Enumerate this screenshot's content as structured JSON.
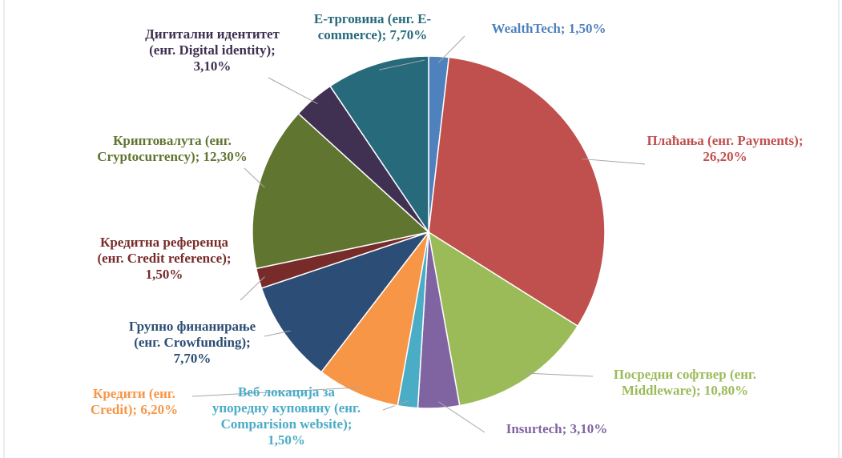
{
  "chart_data": {
    "type": "pie",
    "categories": [
      "WealthTech;",
      "Плаћања (енг. Payments);",
      "Посредни софтвер (енг. Middleware);",
      "Insurtech;",
      "Веб локација за упоредну куповину (енг. Comparision website);",
      "Кредити (енг. Credit);",
      "Групно финанирање (енг. Crowfunding);",
      "Кредитна референца (енг. Credit reference);",
      "Криптовалута (енг. Cryptocurrency);",
      "Дигитални идентитет (енг. Digital identity);",
      "Е-трговина (енг. E-commerce);"
    ],
    "values": [
      1.5,
      26.2,
      10.8,
      3.1,
      1.5,
      6.2,
      7.7,
      1.5,
      12.3,
      3.1,
      7.7
    ],
    "value_labels": [
      "1,50%",
      "26,20%",
      "10,80%",
      "3,10%",
      "1,50%",
      "6,20%",
      "7,70%",
      "1,50%",
      "12,30%",
      "3,10%",
      "7,70%"
    ],
    "colors": [
      "#4f81bd",
      "#c0504d",
      "#9bbb59",
      "#8064a2",
      "#4bacc6",
      "#f79646",
      "#2c4d75",
      "#772c2a",
      "#5f7530",
      "#403152",
      "#276a7c"
    ]
  }
}
